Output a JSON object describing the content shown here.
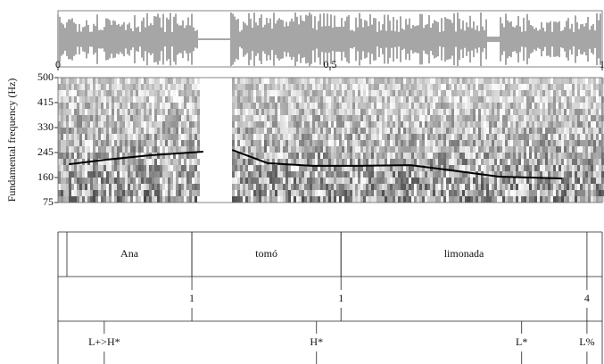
{
  "chart_data": {
    "type": "line",
    "ylabel": "Fundamental frequency (Hz)",
    "xlim": [
      0,
      1
    ],
    "xticks": [
      0,
      0.5,
      1
    ],
    "ylim": [
      75,
      500
    ],
    "yticks": [
      75,
      160,
      245,
      330,
      415,
      500
    ],
    "x": [
      0.02,
      0.09,
      0.17,
      0.267,
      0.29,
      0.32,
      0.385,
      0.467,
      0.55,
      0.648,
      0.713,
      0.81,
      0.926
    ],
    "series": [
      {
        "color": "#000000",
        "values": [
          205,
          221,
          236,
          248,
          null,
          254,
          209,
          200,
          200,
          202,
          187,
          163,
          157
        ]
      }
    ],
    "tiers": [
      {
        "intervals": [
          {
            "label": "Ana",
            "start": 0.0164,
            "end": 0.246
          },
          {
            "label": "tomó",
            "start": 0.246,
            "end": 0.52
          },
          {
            "label": "limonada",
            "start": 0.52,
            "end": 0.972
          }
        ]
      },
      {
        "points": [
          {
            "label": "1",
            "time": 0.246
          },
          {
            "label": "1",
            "time": 0.52
          },
          {
            "label": "4",
            "time": 0.972
          }
        ]
      },
      {
        "points": [
          {
            "label": "L+>H*",
            "time": 0.085
          },
          {
            "label": "H*",
            "time": 0.475
          },
          {
            "label": "L*",
            "time": 0.852
          },
          {
            "label": "L%",
            "time": 0.972
          }
        ]
      }
    ]
  }
}
